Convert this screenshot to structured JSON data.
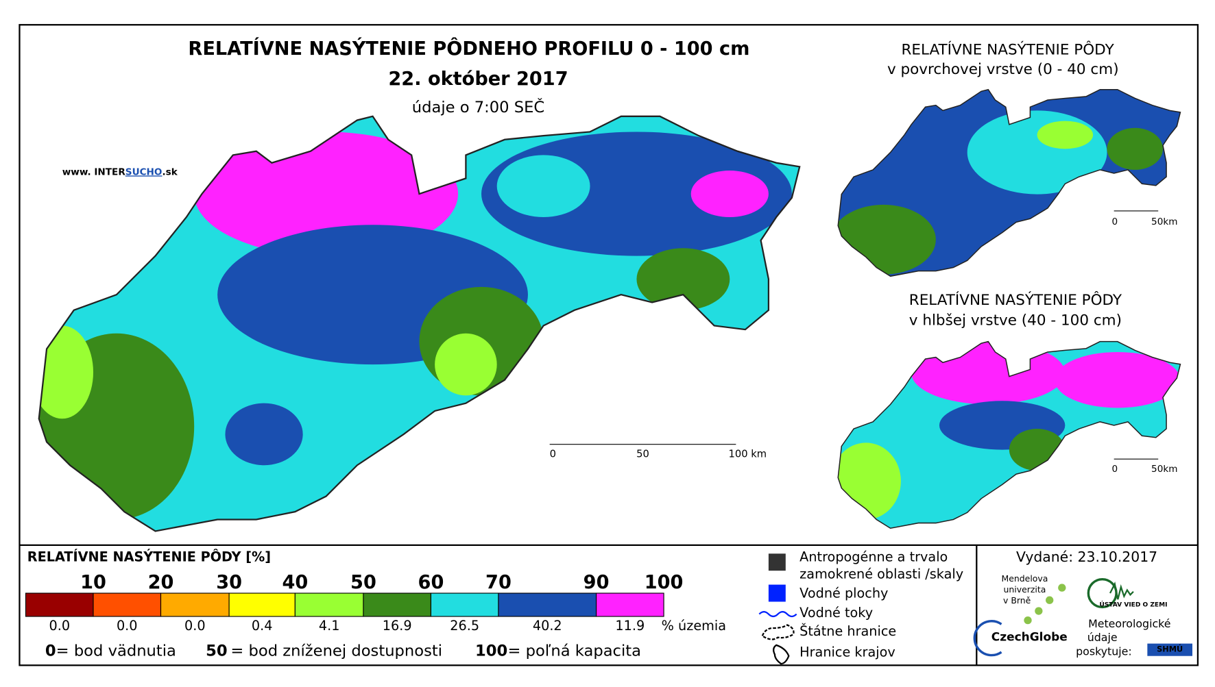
{
  "header": {
    "title": "RELATÍVNE NASÝTENIE PÔDNEHO PROFILU 0 - 100 cm",
    "date": "22. október 2017",
    "time": "údaje o 7:00 SEČ"
  },
  "website": {
    "prefix": "www. INTER",
    "highlight": "SUCHO",
    "suffix": ".sk"
  },
  "main_map": {
    "scale": [
      "0",
      "50",
      "100 km"
    ]
  },
  "inset_surface": {
    "title": "RELATÍVNE NASÝTENIE PÔDY",
    "subtitle": "v povrchovej vrstve (0 - 40 cm)",
    "scale": [
      "0",
      "50km"
    ]
  },
  "inset_deep": {
    "title": "RELATÍVNE NASÝTENIE PÔDY",
    "subtitle": "v hlbšej vrstve (40 - 100 cm)",
    "scale": [
      "0",
      "50km"
    ]
  },
  "legend": {
    "title": "RELATÍVNE NASÝTENIE PÔDY [%]",
    "thresholds": [
      "10",
      "20",
      "30",
      "40",
      "50",
      "60",
      "70",
      "90",
      "100"
    ],
    "classes": [
      {
        "color": "#990000",
        "share": "0.0"
      },
      {
        "color": "#ff5000",
        "share": "0.0"
      },
      {
        "color": "#ffaa00",
        "share": "0.0"
      },
      {
        "color": "#ffff00",
        "share": "0.4"
      },
      {
        "color": "#99ff33",
        "share": "4.1"
      },
      {
        "color": "#3a8a1a",
        "share": "16.9"
      },
      {
        "color": "#22dde0",
        "share": "26.5"
      },
      {
        "color": "#1a4fb0",
        "share": "40.2"
      },
      {
        "color": "#ff22ff",
        "share": "11.9"
      }
    ],
    "unit": "% územia",
    "notes": [
      {
        "value": "0",
        "text": "= bod vädnutia"
      },
      {
        "value": "50",
        "text": "= bod zníženej dostupnosti"
      },
      {
        "value": "100",
        "text": "= poľná kapacita"
      }
    ]
  },
  "symbols": [
    [
      "Antropogénne a trvalo",
      "zamokrené oblasti /skaly"
    ],
    [
      "Vodné plochy"
    ],
    [
      "Vodné toky"
    ],
    [
      "Štátne hranice"
    ],
    [
      "Hranice krajov"
    ]
  ],
  "issued": "Vydané: 23.10.2017",
  "credits": {
    "university": [
      "Mendelova",
      "univerzita",
      "v Brně"
    ],
    "czechglobe": "CzechGlobe",
    "institute": "ÚSTAV VIED O ZEMI",
    "meteo": [
      "Meteorologické",
      "údaje",
      "poskytuje:"
    ],
    "shmu": "SHMÚ"
  }
}
